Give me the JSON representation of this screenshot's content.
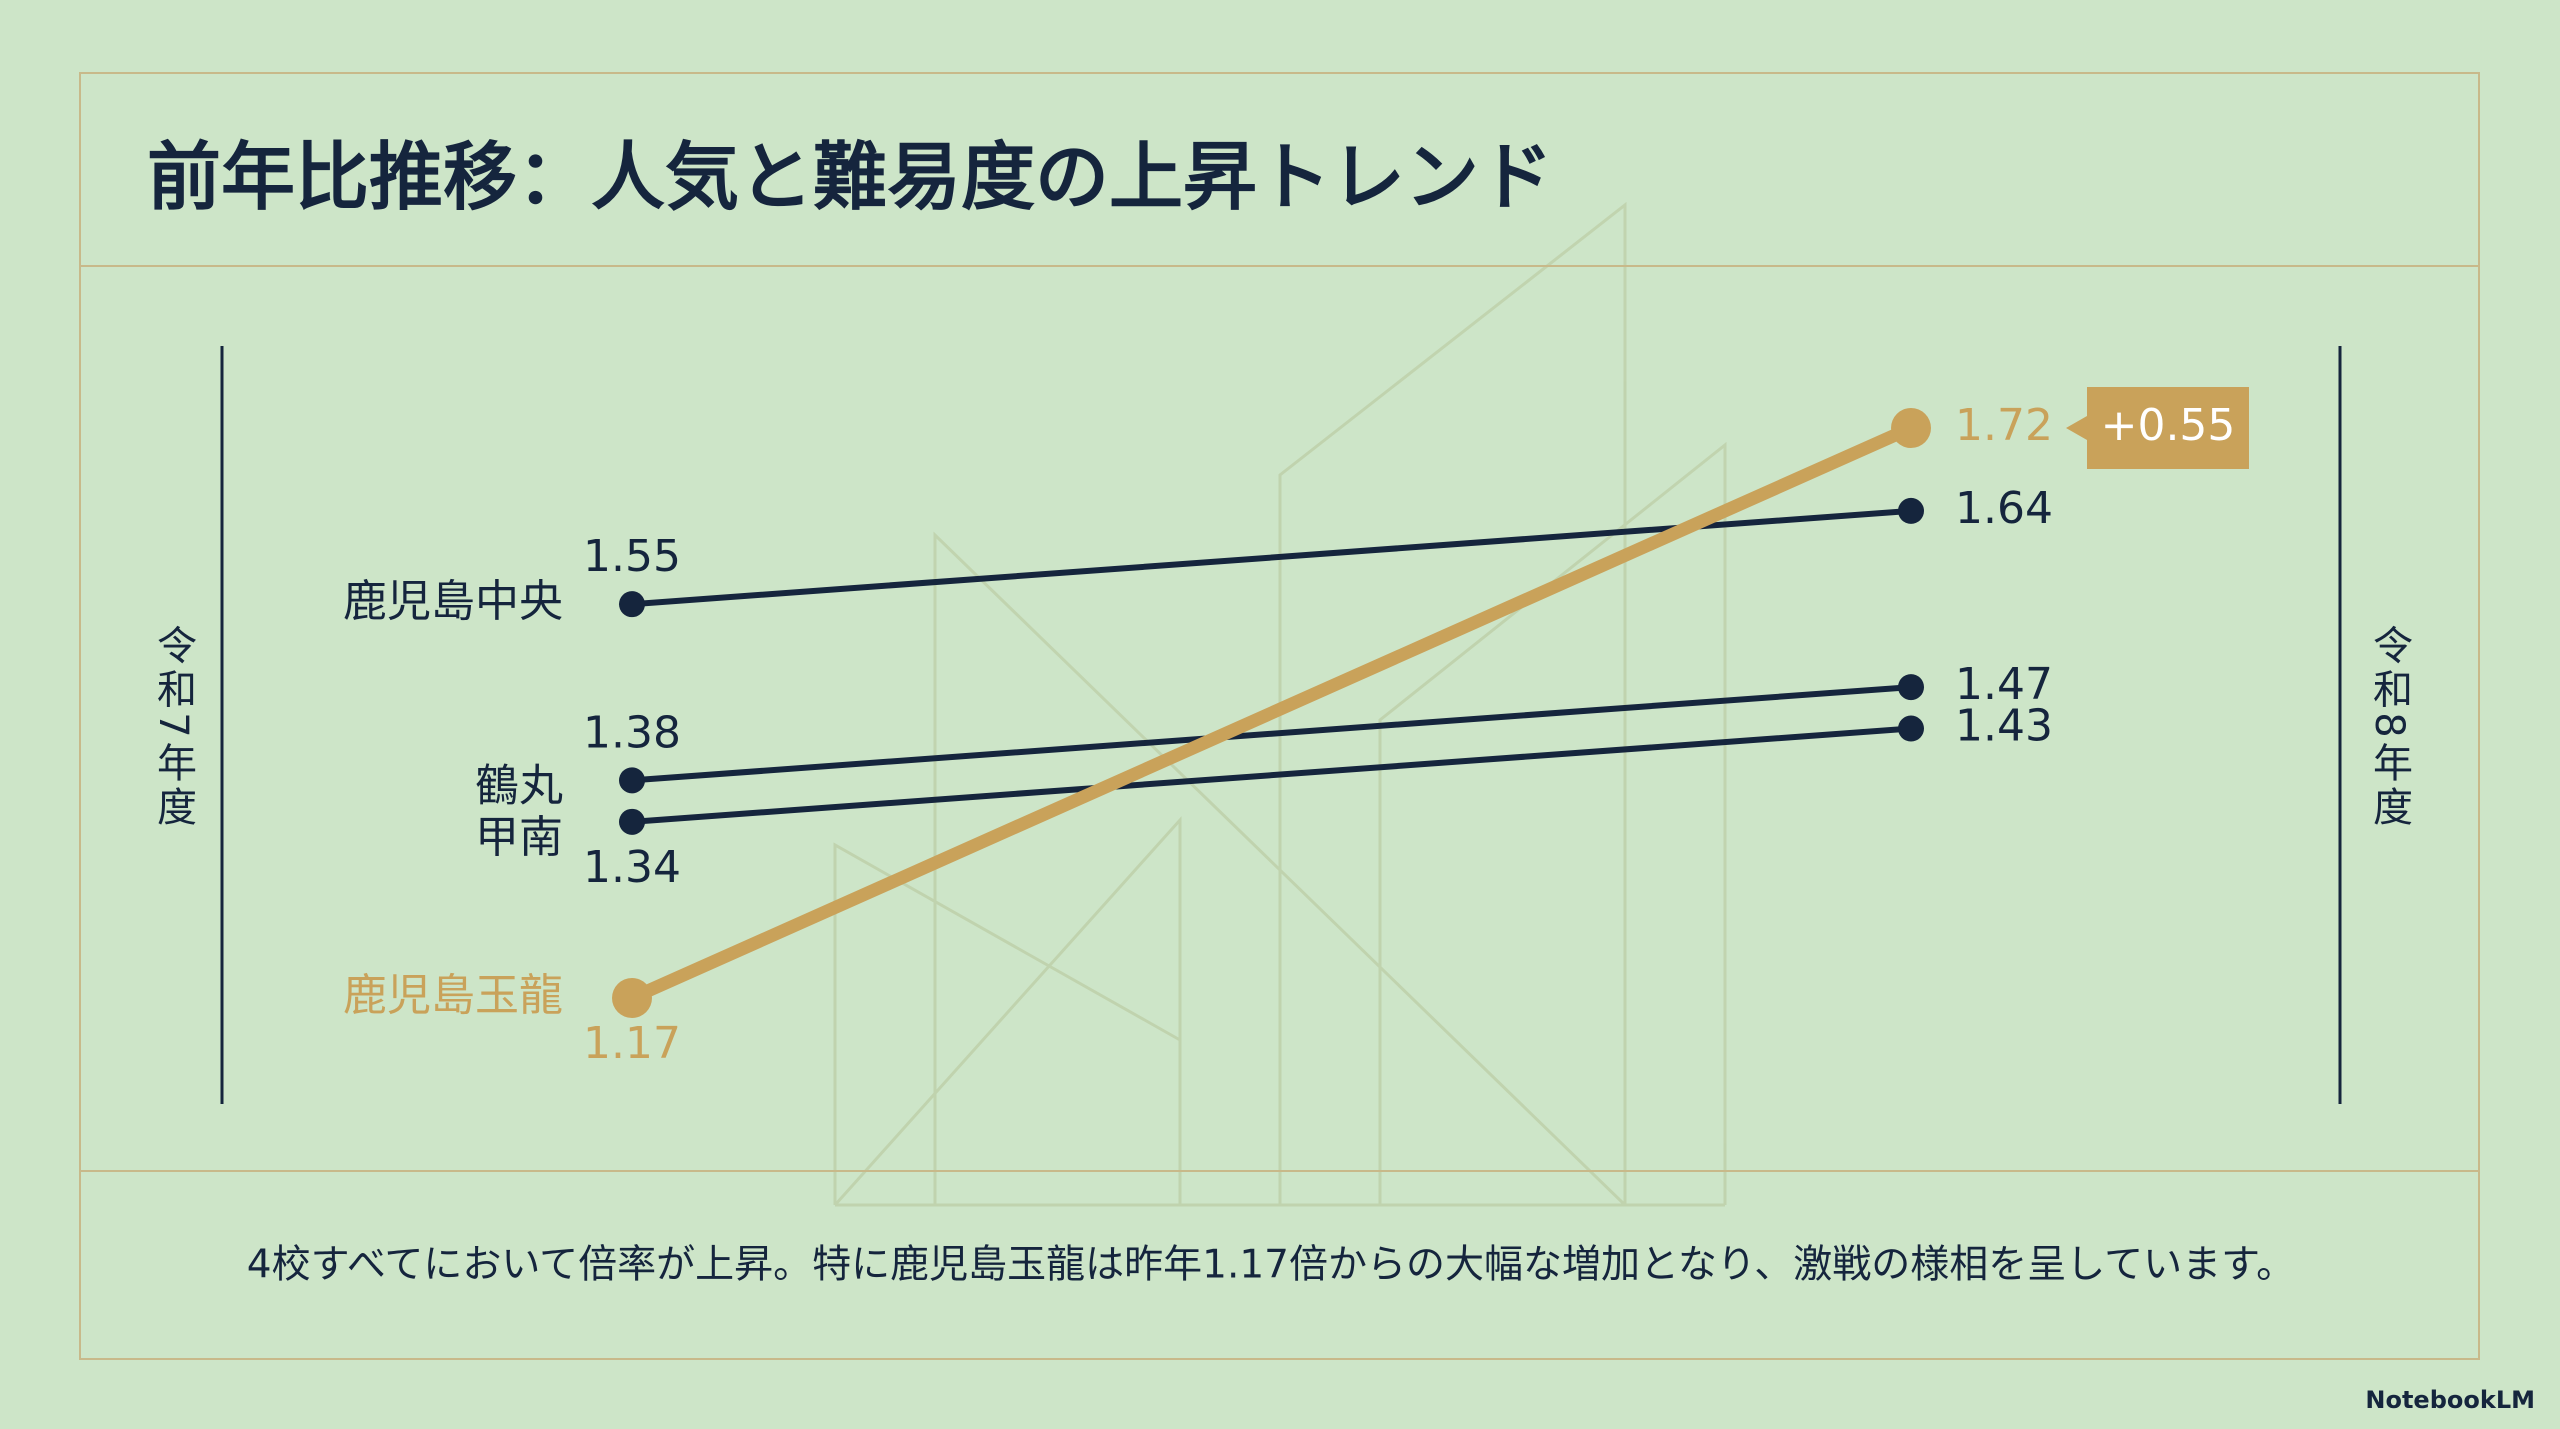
{
  "chart_data": {
    "type": "slope",
    "title": "前年比推移：人気と難易度の上昇トレンド",
    "left_label": "令和7年度",
    "right_label": "令和8年度",
    "series": [
      {
        "name": "鹿児島中央",
        "color": "#15253d",
        "values": [
          1.55,
          1.64
        ]
      },
      {
        "name": "鶴丸",
        "color": "#15253d",
        "values": [
          1.38,
          1.47
        ]
      },
      {
        "name": "甲南",
        "color": "#15253d",
        "values": [
          1.34,
          1.43
        ]
      },
      {
        "name": "鹿児島玉龍",
        "color": "#c9a25a",
        "values": [
          1.17,
          1.72
        ]
      }
    ],
    "annotation": "+0.55",
    "footer": "4校すべてにおいて倍率が上昇。特に鹿児島玉龍は昨年1.17倍からの大幅な増加となり、激戦の様相を呈しています。",
    "watermark": "NotebookLM"
  }
}
